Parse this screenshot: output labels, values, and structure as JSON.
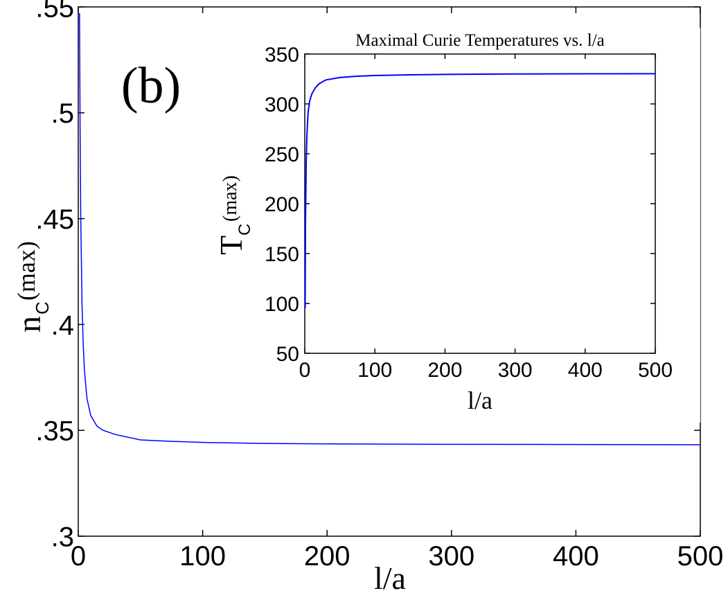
{
  "chart_data": [
    {
      "type": "line",
      "panel_label": "(b)",
      "title": "",
      "xlabel": "l/a",
      "ylabel_main": "n",
      "ylabel_sub": "C",
      "ylabel_sup": "(max)",
      "xlim": [
        0,
        500
      ],
      "ylim": [
        0.3,
        0.55
      ],
      "xticks": [
        0,
        100,
        200,
        300,
        400,
        500
      ],
      "xtick_labels": [
        "0",
        "100",
        "200",
        "300",
        "400",
        "500"
      ],
      "yticks": [
        0.3,
        0.35,
        0.4,
        0.45,
        0.5,
        0.55
      ],
      "ytick_labels": [
        ".3",
        ".35",
        ".4",
        ".45",
        ".5",
        ".55"
      ],
      "grid": false,
      "line_color": "#0000ff",
      "series": [
        {
          "x": [
            1,
            1.5,
            2,
            3,
            4,
            5,
            7,
            10,
            15,
            20,
            30,
            50,
            75,
            100,
            150,
            200,
            300,
            400,
            500
          ],
          "y": [
            0.547,
            0.49,
            0.45,
            0.41,
            0.39,
            0.378,
            0.365,
            0.357,
            0.352,
            0.35,
            0.348,
            0.3455,
            0.3448,
            0.3443,
            0.3438,
            0.3436,
            0.3434,
            0.3433,
            0.3432
          ]
        }
      ]
    },
    {
      "type": "line",
      "title": "Maximal Curie Temperatures vs. l/a",
      "xlabel": "l/a",
      "ylabel_main": "T",
      "ylabel_sub": "C",
      "ylabel_sup": "(max)",
      "xlim": [
        0,
        500
      ],
      "ylim": [
        50,
        350
      ],
      "xticks": [
        0,
        100,
        200,
        300,
        400,
        500
      ],
      "xtick_labels": [
        "0",
        "100",
        "200",
        "300",
        "400",
        "500"
      ],
      "yticks": [
        50,
        100,
        150,
        200,
        250,
        300,
        350
      ],
      "ytick_labels": [
        "50",
        "100",
        "150",
        "200",
        "250",
        "300",
        "350"
      ],
      "grid": false,
      "line_color": "#0000ff",
      "series": [
        {
          "x": [
            0.5,
            1,
            2,
            3,
            4,
            5,
            7,
            10,
            15,
            20,
            30,
            50,
            75,
            100,
            150,
            200,
            300,
            400,
            500
          ],
          "y": [
            95,
            180,
            240,
            268,
            283,
            293,
            303,
            310,
            316,
            320,
            324,
            326.5,
            327.8,
            328.5,
            329.2,
            329.6,
            330,
            330.2,
            330.3
          ]
        }
      ]
    }
  ],
  "top_clipped_text": ""
}
